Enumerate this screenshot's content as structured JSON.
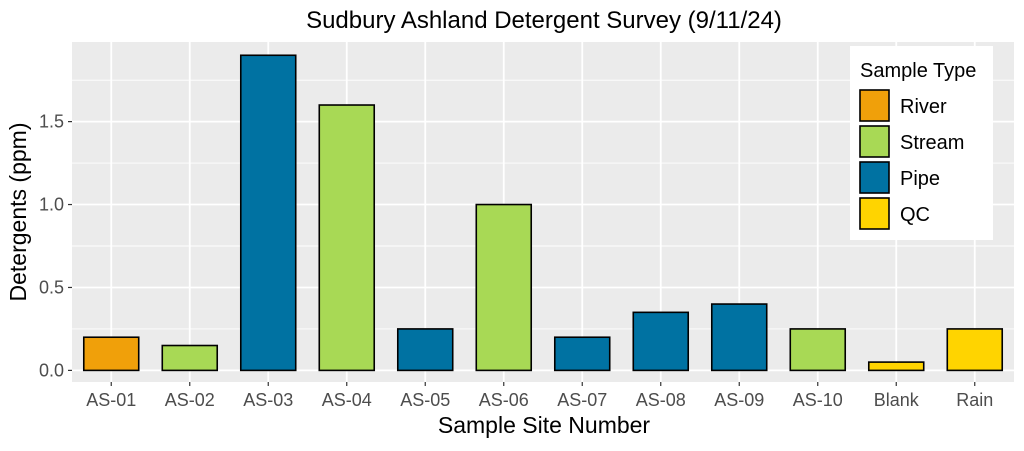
{
  "chart_data": {
    "type": "bar",
    "title": "Sudbury Ashland Detergent Survey (9/11/24)",
    "xlabel": "Sample Site Number",
    "ylabel": "Detergents (ppm)",
    "ylim": [
      -0.07,
      1.98
    ],
    "yticks": [
      "0.0",
      "0.5",
      "1.0",
      "1.5"
    ],
    "grid": true,
    "legend_position": "top-right",
    "categories": [
      "AS-01",
      "AS-02",
      "AS-03",
      "AS-04",
      "AS-05",
      "AS-06",
      "AS-07",
      "AS-08",
      "AS-09",
      "AS-10",
      "Blank",
      "Rain"
    ],
    "values": [
      0.2,
      0.15,
      1.9,
      1.6,
      0.25,
      1.0,
      0.2,
      0.35,
      0.4,
      0.25,
      0.05,
      0.25
    ],
    "sample_types": [
      "River",
      "Stream",
      "Pipe",
      "Stream",
      "Pipe",
      "Stream",
      "Pipe",
      "Pipe",
      "Pipe",
      "Stream",
      "QC",
      "QC"
    ],
    "legend": {
      "title": "Sample Type",
      "entries": [
        {
          "label": "River",
          "color": "#f0a00a"
        },
        {
          "label": "Stream",
          "color": "#a8d955"
        },
        {
          "label": "Pipe",
          "color": "#0072a2"
        },
        {
          "label": "QC",
          "color": "#ffd400"
        }
      ]
    },
    "colors": {
      "panel_background": "#ebebeb",
      "gridline": "#ffffff",
      "bar_outline": "#000000"
    }
  }
}
